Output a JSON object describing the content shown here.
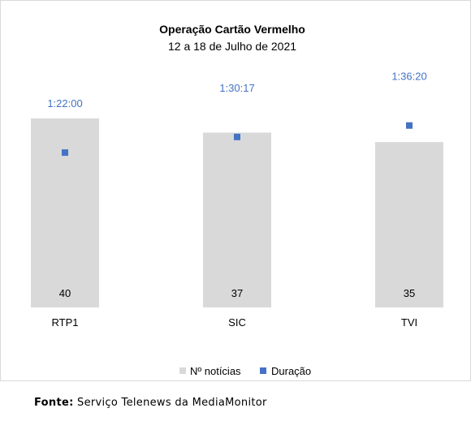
{
  "chart_data": {
    "type": "bar",
    "title": "Operação Cartão Vermelho",
    "subtitle": "12 a 18 de Julho de 2021",
    "categories": [
      "RTP1",
      "SIC",
      "TVI"
    ],
    "series": [
      {
        "name": "Nº notícias",
        "type": "bar",
        "values": [
          40,
          37,
          35
        ],
        "color": "#d9d9d9"
      },
      {
        "name": "Duração",
        "type": "scatter",
        "values": [
          "1:22:00",
          "1:30:17",
          "1:36:20"
        ],
        "seconds": [
          4920,
          5417,
          5780
        ],
        "color": "#4472c4"
      }
    ],
    "bar_ylim": [
      0,
      40
    ],
    "duration_ylim_seconds": [
      0,
      8000
    ],
    "legend_position": "bottom",
    "grid": false
  },
  "source": {
    "label": "Fonte:",
    "text": "Serviço Telenews da MediaMonitor"
  }
}
